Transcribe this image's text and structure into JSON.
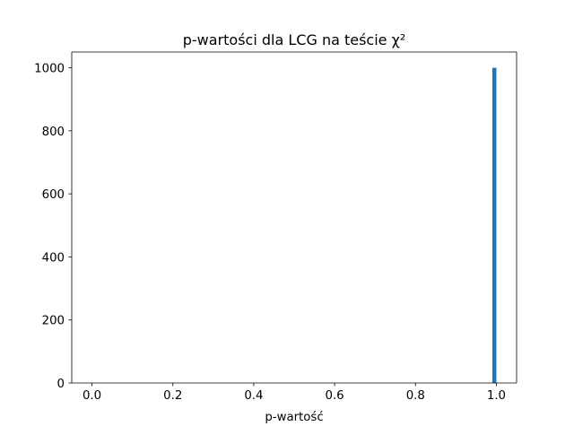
{
  "chart_data": {
    "type": "bar",
    "title": "p-wartości dla LCG na teście χ²",
    "xlabel": "p-wartość",
    "ylabel": "",
    "xlim": [
      -0.05,
      1.05
    ],
    "ylim": [
      0,
      1050
    ],
    "xticks": [
      0.0,
      0.2,
      0.4,
      0.6,
      0.8,
      1.0
    ],
    "xtick_labels": [
      "0.0",
      "0.2",
      "0.4",
      "0.6",
      "0.8",
      "1.0"
    ],
    "yticks": [
      0,
      200,
      400,
      600,
      800,
      1000
    ],
    "ytick_labels": [
      "0",
      "200",
      "400",
      "600",
      "800",
      "1000"
    ],
    "bin_width": 0.01,
    "bins": [
      {
        "start": 0.99,
        "end": 1.0,
        "value": 1000
      }
    ],
    "bar_color": "#1f77b4",
    "grid": false,
    "legend": "none"
  }
}
